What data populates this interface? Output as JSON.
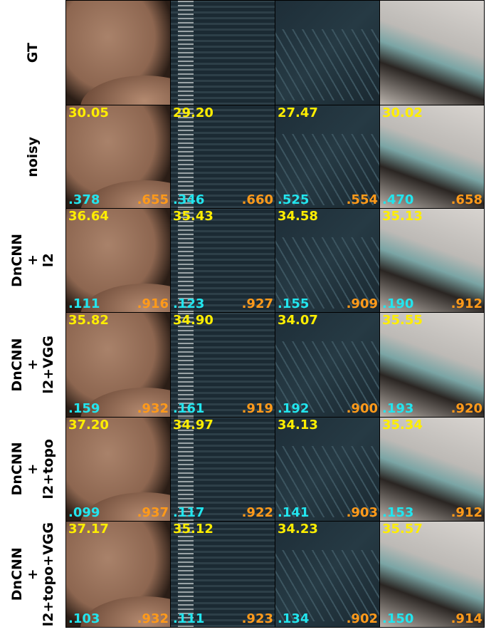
{
  "rows": [
    {
      "label": [
        "GT"
      ]
    },
    {
      "label": [
        "noisy"
      ],
      "cells": [
        {
          "psnr": "30.05",
          "lpips": ".378",
          "ssim": ".655"
        },
        {
          "psnr": "29.20",
          "lpips": ".346",
          "ssim": ".660"
        },
        {
          "psnr": "27.47",
          "lpips": ".525",
          "ssim": ".554"
        },
        {
          "psnr": "30.02",
          "lpips": ".470",
          "ssim": ".658"
        }
      ]
    },
    {
      "label": [
        "DnCNN",
        "+",
        "l2"
      ],
      "cells": [
        {
          "psnr": "36.64",
          "lpips": ".111",
          "ssim": ".916"
        },
        {
          "psnr": "35.43",
          "lpips": ".123",
          "ssim": ".927"
        },
        {
          "psnr": "34.58",
          "lpips": ".155",
          "ssim": ".909"
        },
        {
          "psnr": "35.13",
          "lpips": ".190",
          "ssim": ".912"
        }
      ]
    },
    {
      "label": [
        "DnCNN",
        "+",
        "l2+VGG"
      ],
      "cells": [
        {
          "psnr": "35.82",
          "lpips": ".159",
          "ssim": ".932"
        },
        {
          "psnr": "34.90",
          "lpips": ".161",
          "ssim": ".919"
        },
        {
          "psnr": "34.07",
          "lpips": ".192",
          "ssim": ".900"
        },
        {
          "psnr": "35.55",
          "lpips": ".193",
          "ssim": ".920"
        }
      ]
    },
    {
      "label": [
        "DnCNN",
        "+",
        "l2+topo"
      ],
      "cells": [
        {
          "psnr": "37.20",
          "lpips": ".099",
          "ssim": ".937"
        },
        {
          "psnr": "34.97",
          "lpips": ".117",
          "ssim": ".922"
        },
        {
          "psnr": "34.13",
          "lpips": ".141",
          "ssim": ".903"
        },
        {
          "psnr": "35.34",
          "lpips": ".153",
          "ssim": ".912"
        }
      ]
    },
    {
      "label": [
        "DnCNN",
        "+",
        "l2+topo+VGG"
      ],
      "cells": [
        {
          "psnr": "37.17",
          "lpips": ".103",
          "ssim": ".932"
        },
        {
          "psnr": "35.12",
          "lpips": ".111",
          "ssim": ".923"
        },
        {
          "psnr": "34.23",
          "lpips": ".134",
          "ssim": ".902"
        },
        {
          "psnr": "35.57",
          "lpips": ".150",
          "ssim": ".914"
        }
      ]
    }
  ]
}
